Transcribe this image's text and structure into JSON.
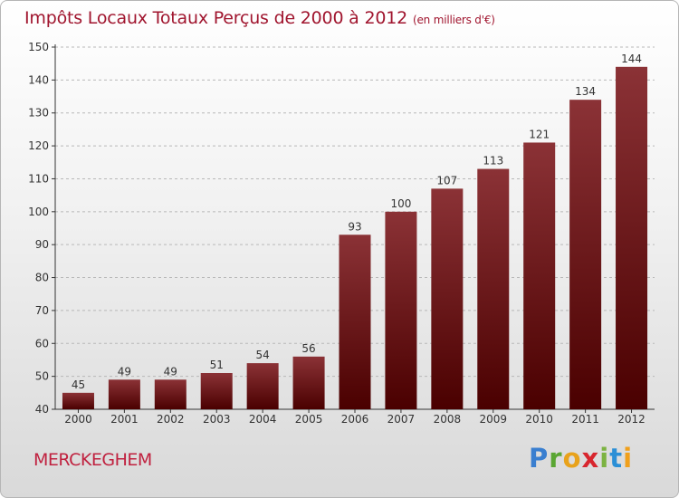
{
  "title": "Impôts Locaux Totaux Perçus de 2000 à 2012",
  "title_unit": "(en milliers d'€)",
  "commune": "MERCKEGHEM",
  "logo": "Proxiti",
  "colors": {
    "bar_top": "#8b3236",
    "bar_bottom": "#4a0000",
    "title": "#a0152e"
  },
  "chart_data": {
    "type": "bar",
    "title": "Impôts Locaux Totaux Perçus de 2000 à 2012",
    "xlabel": "",
    "ylabel": "",
    "categories": [
      "2000",
      "2001",
      "2002",
      "2003",
      "2004",
      "2005",
      "2006",
      "2007",
      "2008",
      "2009",
      "2010",
      "2011",
      "2012"
    ],
    "values": [
      45,
      49,
      49,
      51,
      54,
      56,
      93,
      100,
      107,
      113,
      121,
      134,
      144
    ],
    "ylim": [
      40,
      150
    ],
    "yticks": [
      40,
      50,
      60,
      70,
      80,
      90,
      100,
      110,
      120,
      130,
      140,
      150
    ],
    "grid": true
  }
}
